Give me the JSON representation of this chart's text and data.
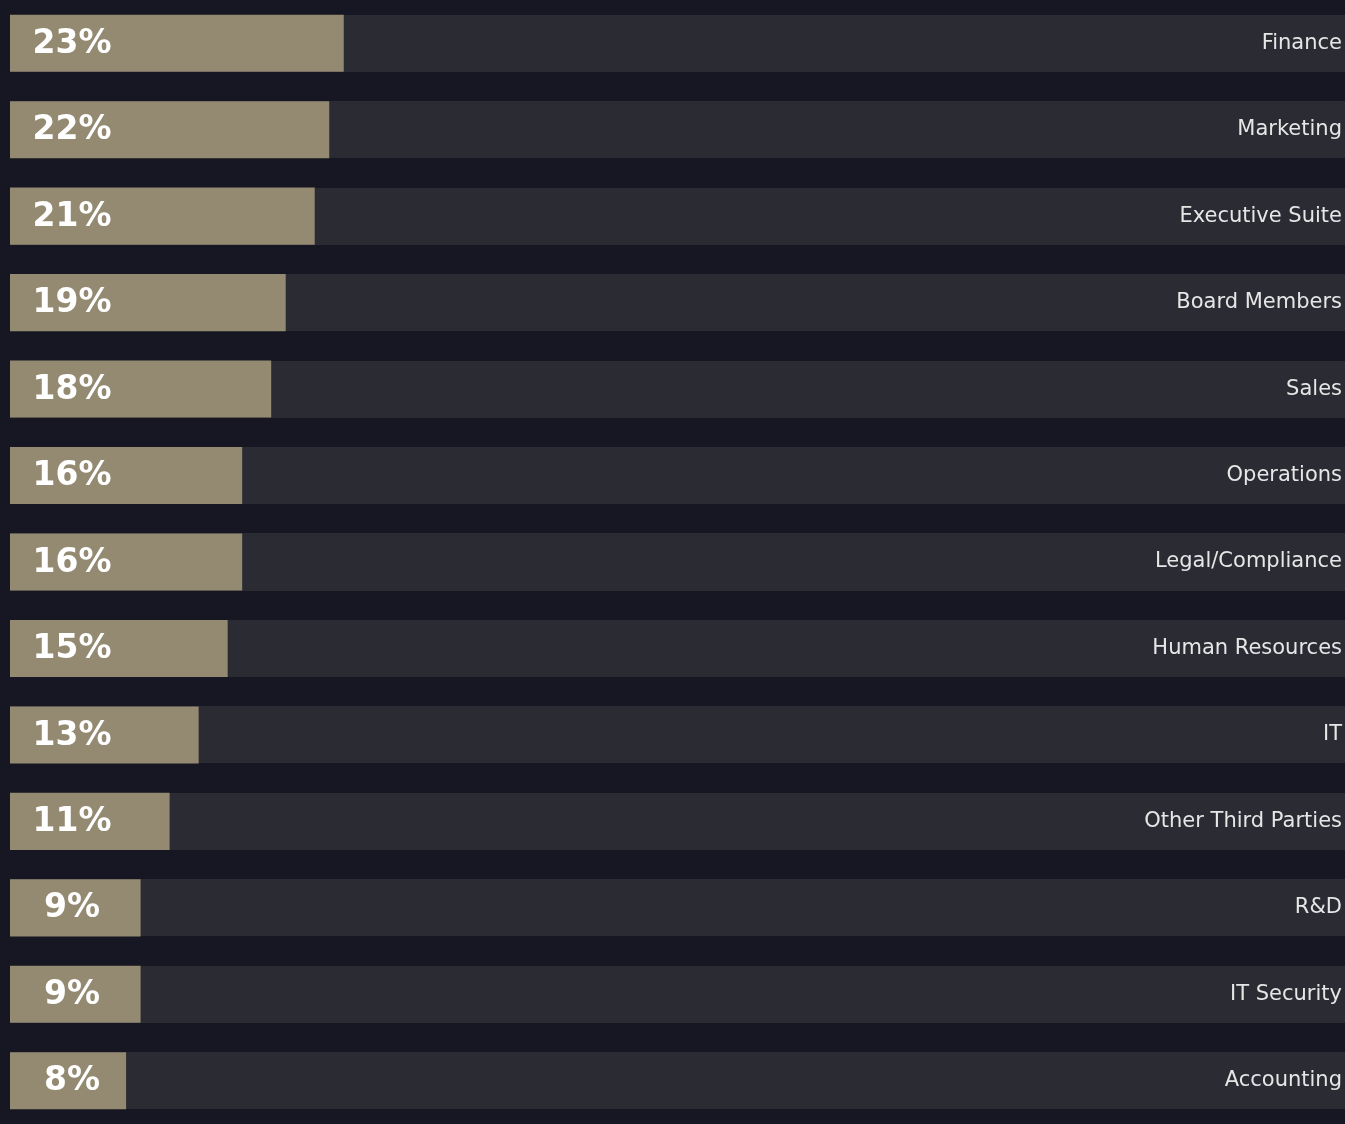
{
  "chart_data": {
    "type": "bar",
    "orientation": "horizontal",
    "legend": false,
    "tick_labels": "y",
    "categories": [
      "Finance",
      "Marketing",
      "Executive Suite",
      "Board Members",
      "Sales",
      "Operations",
      "Legal/Compliance",
      "Human Resources",
      "IT",
      "Other Third Parties",
      "R&D",
      "IT Security",
      "Accounting"
    ],
    "values": [
      23,
      22,
      21,
      19,
      18,
      16,
      16,
      15,
      13,
      11,
      9,
      9,
      8
    ],
    "value_labels": [
      "23%",
      "22%",
      "21%",
      "19%",
      "18%",
      "16%",
      "16%",
      "15%",
      "13%",
      "11%",
      "9%",
      "9%",
      "8%"
    ],
    "color": "#948a72"
  }
}
